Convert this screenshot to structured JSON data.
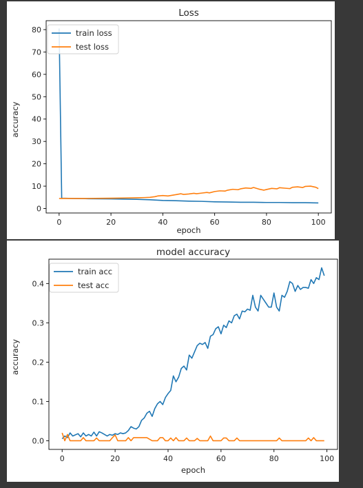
{
  "chart_data": [
    {
      "type": "line",
      "title": "Loss",
      "xlabel": "epoch",
      "ylabel": "accuracy",
      "xlim": [
        -5,
        105
      ],
      "ylim": [
        -2,
        84
      ],
      "xticks": [
        0,
        20,
        40,
        60,
        80,
        100
      ],
      "yticks": [
        0,
        10,
        20,
        30,
        40,
        50,
        60,
        70,
        80
      ],
      "grid": false,
      "legend_position": "upper-left",
      "series": [
        {
          "name": "train loss",
          "color": "#1f77b4",
          "x": [
            0,
            1,
            5,
            10,
            20,
            30,
            35,
            40,
            45,
            50,
            55,
            60,
            65,
            70,
            75,
            80,
            85,
            90,
            95,
            100
          ],
          "y": [
            80.5,
            4.6,
            4.5,
            4.4,
            4.3,
            4.1,
            3.9,
            3.6,
            3.5,
            3.3,
            3.2,
            3.0,
            2.9,
            2.8,
            2.8,
            2.7,
            2.7,
            2.6,
            2.6,
            2.5
          ]
        },
        {
          "name": "test loss",
          "color": "#ff7f0e",
          "x": [
            0,
            10,
            20,
            25,
            30,
            33,
            35,
            37,
            38,
            40,
            42,
            44,
            45,
            47,
            48,
            50,
            52,
            53,
            55,
            57,
            58,
            60,
            62,
            64,
            65,
            67,
            69,
            70,
            72,
            74,
            75,
            77,
            79,
            80,
            82,
            84,
            85,
            87,
            89,
            90,
            92,
            94,
            95,
            97,
            99,
            100
          ],
          "y": [
            4.5,
            4.5,
            4.6,
            4.7,
            4.8,
            4.9,
            5.0,
            5.3,
            5.6,
            5.8,
            5.6,
            6.0,
            6.2,
            6.6,
            6.3,
            6.5,
            6.8,
            6.6,
            6.9,
            7.2,
            7.0,
            7.6,
            7.9,
            7.8,
            8.2,
            8.6,
            8.4,
            8.8,
            9.2,
            9.0,
            9.4,
            8.7,
            8.2,
            8.5,
            9.0,
            8.8,
            9.3,
            9.1,
            8.9,
            9.5,
            9.7,
            9.4,
            9.9,
            10.0,
            9.5,
            8.9
          ]
        }
      ]
    },
    {
      "type": "line",
      "title": "model accuracy",
      "xlabel": "epoch",
      "ylabel": "accuracy",
      "xlim": [
        -5,
        104
      ],
      "ylim": [
        -0.022,
        0.462
      ],
      "xticks": [
        0,
        20,
        40,
        60,
        80,
        100
      ],
      "yticks": [
        0.0,
        0.1,
        0.2,
        0.3,
        0.4
      ],
      "grid": false,
      "legend_position": "upper-left",
      "series": [
        {
          "name": "train acc",
          "color": "#1f77b4",
          "x": [
            0,
            1,
            2,
            3,
            4,
            5,
            6,
            7,
            8,
            9,
            10,
            11,
            12,
            13,
            14,
            15,
            16,
            17,
            18,
            19,
            20,
            21,
            22,
            23,
            24,
            25,
            26,
            27,
            28,
            29,
            30,
            31,
            32,
            33,
            34,
            35,
            36,
            37,
            38,
            39,
            40,
            41,
            42,
            43,
            44,
            45,
            46,
            47,
            48,
            49,
            50,
            51,
            52,
            53,
            54,
            55,
            56,
            57,
            58,
            59,
            60,
            61,
            62,
            63,
            64,
            65,
            66,
            67,
            68,
            69,
            70,
            71,
            72,
            73,
            74,
            75,
            76,
            77,
            78,
            79,
            80,
            81,
            82,
            83,
            84,
            85,
            86,
            87,
            88,
            89,
            90,
            91,
            92,
            93,
            94,
            95,
            96,
            97,
            98,
            99
          ],
          "y": [
            0.005,
            0.012,
            0.008,
            0.02,
            0.012,
            0.015,
            0.018,
            0.01,
            0.02,
            0.012,
            0.016,
            0.012,
            0.022,
            0.012,
            0.023,
            0.02,
            0.016,
            0.012,
            0.016,
            0.014,
            0.018,
            0.016,
            0.02,
            0.018,
            0.02,
            0.026,
            0.036,
            0.032,
            0.03,
            0.036,
            0.052,
            0.058,
            0.07,
            0.075,
            0.062,
            0.082,
            0.094,
            0.1,
            0.092,
            0.11,
            0.12,
            0.128,
            0.165,
            0.15,
            0.162,
            0.184,
            0.19,
            0.18,
            0.218,
            0.21,
            0.226,
            0.242,
            0.248,
            0.245,
            0.25,
            0.235,
            0.266,
            0.27,
            0.285,
            0.29,
            0.272,
            0.294,
            0.288,
            0.305,
            0.3,
            0.318,
            0.322,
            0.31,
            0.33,
            0.328,
            0.335,
            0.332,
            0.37,
            0.34,
            0.33,
            0.37,
            0.36,
            0.35,
            0.34,
            0.34,
            0.376,
            0.34,
            0.33,
            0.37,
            0.365,
            0.38,
            0.405,
            0.4,
            0.38,
            0.395,
            0.385,
            0.39,
            0.39,
            0.388,
            0.41,
            0.4,
            0.415,
            0.41,
            0.44,
            0.42
          ]
        },
        {
          "name": "test acc",
          "color": "#ff7f0e",
          "x": [
            0,
            1,
            2,
            3,
            4,
            5,
            6,
            7,
            8,
            9,
            10,
            11,
            12,
            13,
            14,
            15,
            16,
            17,
            18,
            19,
            20,
            21,
            22,
            23,
            24,
            25,
            26,
            27,
            28,
            29,
            30,
            31,
            32,
            33,
            34,
            35,
            36,
            37,
            38,
            39,
            40,
            41,
            42,
            43,
            44,
            45,
            46,
            47,
            48,
            49,
            50,
            51,
            52,
            53,
            54,
            55,
            56,
            57,
            58,
            59,
            60,
            61,
            62,
            63,
            64,
            65,
            66,
            67,
            68,
            69,
            70,
            71,
            72,
            73,
            74,
            75,
            76,
            77,
            78,
            79,
            80,
            81,
            82,
            83,
            84,
            85,
            86,
            87,
            88,
            89,
            90,
            91,
            92,
            93,
            94,
            95,
            96,
            97,
            98,
            99
          ],
          "y": [
            0.02,
            0.0,
            0.016,
            0.0,
            0.0,
            0.0,
            0.0,
            0.0,
            0.008,
            0.0,
            0.0,
            0.0,
            0.0,
            0.007,
            0.0,
            0.0,
            0.0,
            0.0,
            0.0,
            0.008,
            0.015,
            0.0,
            0.0,
            0.0,
            0.0,
            0.008,
            0.0,
            0.008,
            0.008,
            0.008,
            0.008,
            0.008,
            0.008,
            0.004,
            0.0,
            0.0,
            0.0,
            0.008,
            0.008,
            0.0,
            0.0,
            0.007,
            0.0,
            0.008,
            0.0,
            0.0,
            0.0,
            0.007,
            0.0,
            0.0,
            0.0,
            0.006,
            0.0,
            0.0,
            0.0,
            0.0,
            0.012,
            0.0,
            0.0,
            0.0,
            0.0,
            0.007,
            0.007,
            0.0,
            0.0,
            0.0,
            0.007,
            0.0,
            0.0,
            0.0,
            0.0,
            0.0,
            0.0,
            0.0,
            0.0,
            0.0,
            0.0,
            0.0,
            0.0,
            0.0,
            0.0,
            0.0,
            0.007,
            0.0,
            0.0,
            0.0,
            0.0,
            0.0,
            0.0,
            0.0,
            0.0,
            0.0,
            0.0,
            0.007,
            0.0,
            0.008,
            0.0,
            0.0,
            0.0,
            0.0
          ]
        }
      ]
    }
  ]
}
